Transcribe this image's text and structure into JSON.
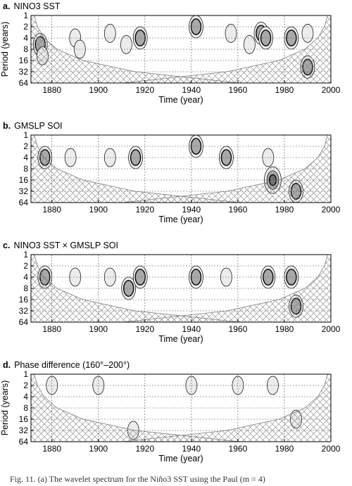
{
  "panels": [
    {
      "letter": "a.",
      "title": "NINO3 SST",
      "ylabel": "Period (years)",
      "xlabel": "Time (year)",
      "show_ylabel": true
    },
    {
      "letter": "b.",
      "title": "GMSLP SOI",
      "ylabel": "",
      "xlabel": "Time (year)",
      "show_ylabel": false
    },
    {
      "letter": "c.",
      "title": "NINO3 SST  × GMSLP SOI",
      "ylabel": "",
      "xlabel": "Time (year)",
      "show_ylabel": false
    },
    {
      "letter": "d.",
      "title": "Phase difference (160°–200°)",
      "ylabel": "Period (years)",
      "xlabel": "Time (year)",
      "show_ylabel": true
    }
  ],
  "caption": "Fig. 11. (a) The wavelet spectrum for the Niño3 SST using the Paul (m = 4)",
  "colors": {
    "light": "#ececec",
    "mid": "#a9a9a9",
    "dark": "#6e6e6e",
    "line": "#000000",
    "coi": "#808080"
  },
  "chart_data": [
    {
      "type": "heatmap",
      "title": "NINO3 SST",
      "xlabel": "Time (year)",
      "ylabel": "Period (years)",
      "xlim": [
        1871,
        2000
      ],
      "ylim": [
        1,
        64
      ],
      "yscale": "log2",
      "xticks": [
        1880,
        1900,
        1920,
        1940,
        1960,
        1980,
        2000
      ],
      "yticks": [
        1,
        2,
        4,
        8,
        16,
        32,
        64
      ],
      "grid": true,
      "cells": [
        [
          1875,
          6,
          2
        ],
        [
          1876,
          12,
          1
        ],
        [
          1890,
          4,
          1
        ],
        [
          1892,
          8,
          1
        ],
        [
          1905,
          3,
          1
        ],
        [
          1912,
          6,
          1
        ],
        [
          1918,
          4,
          2
        ],
        [
          1942,
          2,
          2
        ],
        [
          1957,
          3,
          1
        ],
        [
          1965,
          6,
          1
        ],
        [
          1970,
          3,
          2
        ],
        [
          1972,
          4,
          2
        ],
        [
          1983,
          4,
          2
        ],
        [
          1990,
          3,
          1
        ],
        [
          1990,
          24,
          2
        ]
      ]
    },
    {
      "type": "heatmap",
      "title": "GMSLP SOI",
      "xlabel": "Time (year)",
      "ylabel": "Period (years)",
      "xlim": [
        1871,
        2000
      ],
      "ylim": [
        1,
        64
      ],
      "yscale": "log2",
      "xticks": [
        1880,
        1900,
        1920,
        1940,
        1960,
        1980,
        2000
      ],
      "yticks": [
        1,
        2,
        4,
        8,
        16,
        32,
        64
      ],
      "grid": true,
      "cells": [
        [
          1877,
          4,
          2
        ],
        [
          1888,
          4,
          1
        ],
        [
          1905,
          4,
          1
        ],
        [
          1916,
          4,
          2
        ],
        [
          1942,
          2,
          2
        ],
        [
          1955,
          4,
          2
        ],
        [
          1973,
          4,
          1
        ],
        [
          1975,
          16,
          3
        ],
        [
          1985,
          32,
          2
        ]
      ]
    },
    {
      "type": "heatmap",
      "title": "NINO3 SST  × GMSLP SOI",
      "xlabel": "Time (year)",
      "ylabel": "Period (years)",
      "xlim": [
        1871,
        2000
      ],
      "ylim": [
        1,
        64
      ],
      "yscale": "log2",
      "xticks": [
        1880,
        1900,
        1920,
        1940,
        1960,
        1980,
        2000
      ],
      "yticks": [
        1,
        2,
        4,
        8,
        16,
        32,
        64
      ],
      "grid": true,
      "cells": [
        [
          1877,
          4,
          2
        ],
        [
          1890,
          4,
          1
        ],
        [
          1905,
          4,
          1
        ],
        [
          1913,
          8,
          2
        ],
        [
          1918,
          4,
          2
        ],
        [
          1942,
          4,
          2
        ],
        [
          1955,
          4,
          1
        ],
        [
          1973,
          4,
          2
        ],
        [
          1983,
          4,
          2
        ],
        [
          1985,
          24,
          2
        ]
      ]
    },
    {
      "type": "heatmap",
      "title": "Phase difference (160°–200°)",
      "xlabel": "Time (year)",
      "ylabel": "Period (years)",
      "xlim": [
        1871,
        2000
      ],
      "ylim": [
        1,
        64
      ],
      "yscale": "log2",
      "xticks": [
        1880,
        1900,
        1920,
        1940,
        1960,
        1980,
        2000
      ],
      "yticks": [
        1,
        2,
        4,
        8,
        16,
        32,
        64
      ],
      "grid": true,
      "cells": [
        [
          1880,
          2,
          1
        ],
        [
          1900,
          2,
          1
        ],
        [
          1915,
          32,
          1
        ],
        [
          1940,
          2,
          1
        ],
        [
          1960,
          2,
          1
        ],
        [
          1975,
          2,
          1
        ],
        [
          1985,
          16,
          1
        ]
      ]
    }
  ]
}
